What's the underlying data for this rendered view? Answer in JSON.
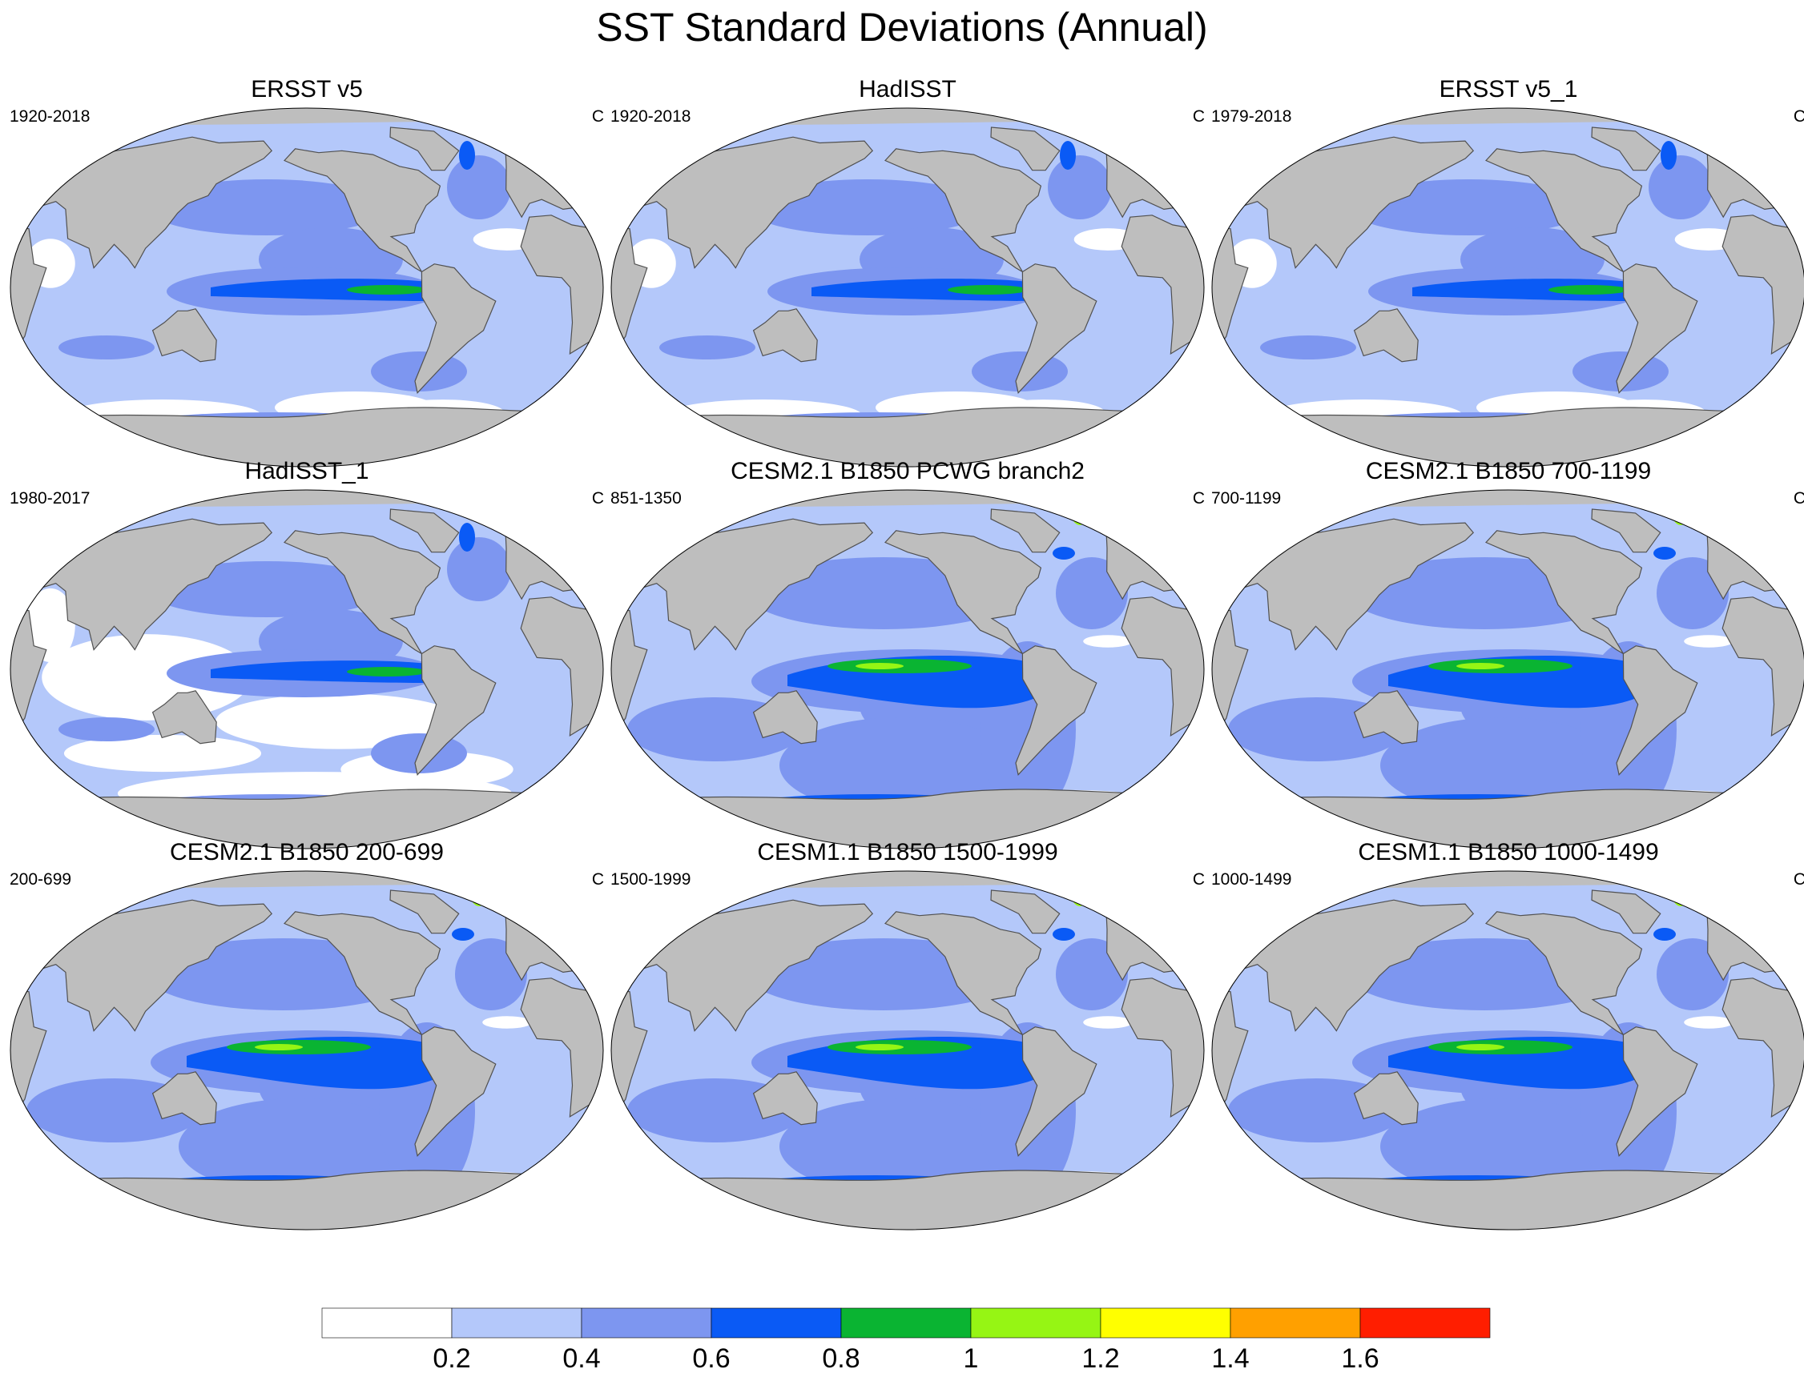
{
  "title": "SST Standard Deviations (Annual)",
  "panels": [
    {
      "title": "ERSST v5",
      "left": "1920-2018",
      "right": "C",
      "variant": "obs"
    },
    {
      "title": "HadISST",
      "left": "1920-2018",
      "right": "C",
      "variant": "obs"
    },
    {
      "title": "ERSST v5_1",
      "left": "1979-2018",
      "right": "C",
      "variant": "obs"
    },
    {
      "title": "HadISST_1",
      "left": "1980-2017",
      "right": "C",
      "variant": "obs_white"
    },
    {
      "title": "CESM2.1 B1850 PCWG branch2",
      "left": "851-1350",
      "right": "C",
      "variant": "model"
    },
    {
      "title": "CESM2.1 B1850 700-1199",
      "left": "700-1199",
      "right": "C",
      "variant": "model"
    },
    {
      "title": "CESM2.1 B1850 200-699",
      "left": "200-699",
      "right": "C",
      "variant": "model"
    },
    {
      "title": "CESM1.1 B1850 1500-1999",
      "left": "1500-1999",
      "right": "C",
      "variant": "model"
    },
    {
      "title": "CESM1.1 B1850 1000-1499",
      "left": "1000-1499",
      "right": "C",
      "variant": "model"
    }
  ],
  "colorbar": {
    "labels": [
      "0.2",
      "0.4",
      "0.6",
      "0.8",
      "1",
      "1.2",
      "1.4",
      "1.6"
    ],
    "colors": [
      "#ffffff",
      "#b4c8fa",
      "#7d96f0",
      "#0a5af5",
      "#0ab432",
      "#96f514",
      "#ffff00",
      "#ffa000",
      "#ff1e00"
    ]
  },
  "colors": {
    "land": "#bebebe",
    "coast": "#505050"
  }
}
